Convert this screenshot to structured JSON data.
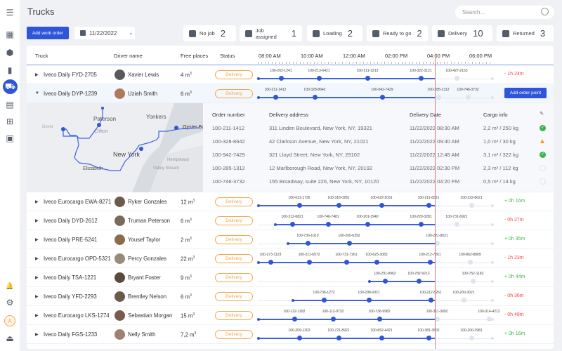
{
  "page": {
    "title": "Trucks"
  },
  "search": {
    "placeholder": "Search..."
  },
  "toolbar": {
    "add_label": "Add work order",
    "date": "11/22/2022"
  },
  "sidebar": {
    "items": [
      "menu",
      "grid",
      "box",
      "bag",
      "truck",
      "chart",
      "globe",
      "chat",
      "bell",
      "gear",
      "avatar",
      "logout"
    ],
    "avatar_letter": "A",
    "active": "truck"
  },
  "chips": [
    {
      "label": "No job",
      "count": "2"
    },
    {
      "label": "Job assigned",
      "count": "1"
    },
    {
      "label": "Loading",
      "count": "2"
    },
    {
      "label": "Ready to go",
      "count": "2"
    },
    {
      "label": "Delivery",
      "count": "10"
    },
    {
      "label": "Returned",
      "count": "3"
    }
  ],
  "table": {
    "headers": {
      "truck": "Truck",
      "driver": "Driver name",
      "free": "Free places",
      "status": "Status"
    },
    "time_ticks": [
      "08:00 AM",
      "10:00 AM",
      "12:00 AM",
      "02:00 PM",
      "04:00 PM",
      "06:00 PM"
    ],
    "current_time": "15:52",
    "rows": [
      {
        "truck": "Iveco Daily FYD-2705",
        "driver": "Xavier Lewis",
        "free": "4 m",
        "status": "Delivery",
        "delay": "- 1h 24m",
        "start": "07:28",
        "stops": [
          [
            "100-262-1241",
            "08:34"
          ],
          [
            "100-213-6421",
            "10:22"
          ],
          [
            "100-211-3213",
            "12:40"
          ],
          [
            "100-322-3121",
            "15:12"
          ],
          [
            "100-427-2153",
            "16:54"
          ]
        ]
      },
      {
        "truck": "Iveco Daily DYP-1239",
        "driver": "Uziah Smith",
        "free": "6 m",
        "status": "Delivery",
        "expanded": true,
        "action": "Add order point",
        "start": "07:28",
        "stops": [
          [
            "100-211-1412",
            "08:18"
          ],
          [
            "100-328-8642",
            "10:10"
          ],
          [
            "100-942-7429",
            "13:22"
          ],
          [
            "100-285-1312",
            "16:02"
          ],
          [
            "100-746-3732",
            "17:26"
          ]
        ]
      },
      {
        "truck": "Iveco Eurocargo EWA-8271",
        "driver": "Ryker Gonzales",
        "free": "12 m",
        "status": "Delivery",
        "delay": "+ 0h 16m",
        "start": "07:28",
        "stops": [
          [
            "100-621-1726",
            "09:26"
          ],
          [
            "100-318-0281",
            "11:18"
          ],
          [
            "100-622-2031",
            "13:20"
          ],
          [
            "100-211-8321",
            "15:34"
          ],
          [
            "100-222-8621",
            "17:36"
          ]
        ]
      },
      {
        "truck": "Iveco Daily DYD-2612",
        "driver": "Truman Peterson",
        "free": "6 m",
        "status": "Delivery",
        "delay": "- 0h 27m",
        "start": "08:16",
        "stops": [
          [
            "100-312-6821",
            "09:06"
          ],
          [
            "100-746-7481",
            "10:48"
          ],
          [
            "100-201-3940",
            "12:40"
          ],
          [
            "100-220-3281",
            "15:12"
          ],
          [
            "100-731-6921",
            "16:54"
          ]
        ]
      },
      {
        "truck": "Iveco Daily PRE-5241",
        "driver": "Yousef Taylor",
        "free": "2 m",
        "status": "Delivery",
        "delay": "+ 0h 35m",
        "start": "08:52",
        "stops": [
          [
            "100-736-1010",
            "09:50"
          ],
          [
            "100-200-6292",
            "11:48"
          ],
          [
            "100-221-8621",
            "15:58"
          ]
        ]
      },
      {
        "truck": "Iveco Eurocargo OPD-5321",
        "driver": "Percy Gonzales",
        "free": "22 m",
        "status": "Delivery",
        "delay": "- 1h 23m",
        "start": "07:28",
        "stops": [
          [
            "100-273-1123",
            "08:04"
          ],
          [
            "100-211-6972",
            "09:54"
          ],
          [
            "100-731-7261",
            "11:40"
          ],
          [
            "100-625-3083",
            "13:06"
          ],
          [
            "100-212-7261",
            "15:38"
          ],
          [
            "100-862-8809",
            "17:32"
          ]
        ]
      },
      {
        "truck": "Iveco Daily TSA-1221",
        "driver": "Bryant Foster",
        "free": "9 m",
        "status": "Delivery",
        "delay": "+ 0h 44m",
        "start": "12:44",
        "stops": [
          [
            "100-291-8962",
            "13:30"
          ],
          [
            "100-782-9213",
            "15:06"
          ],
          [
            "100-752-1182",
            "17:40"
          ]
        ]
      },
      {
        "truck": "Iveco Daily YFD-2293",
        "driver": "Brentley Nelson",
        "free": "6 m",
        "status": "Delivery",
        "delay": "- 0h 36m",
        "start": "09:06",
        "stops": [
          [
            "100-736-1272",
            "10:36"
          ],
          [
            "100-298-0921",
            "12:44"
          ],
          [
            "100-212-8261",
            "15:40"
          ],
          [
            "100-200-3021",
            "17:14"
          ]
        ]
      },
      {
        "truck": "Iveco Eurocargo LKS-1274",
        "driver": "Sebastian Morgan",
        "free": "15 m",
        "status": "Delivery",
        "delay": "- 0h 48m",
        "start": "07:28",
        "stops": [
          [
            "100-122-1182",
            "09:12"
          ],
          [
            "100-112-9732",
            "11:02"
          ],
          [
            "100-736-9982",
            "13:14"
          ],
          [
            "100-311-3092",
            "15:58"
          ],
          [
            "100-314-4212",
            "18:26"
          ]
        ]
      },
      {
        "truck": "Iveco Daily FGS-1233",
        "driver": "Nelly Smith",
        "free": "7,2 m",
        "status": "Delivery",
        "delay": "+ 0h 16m",
        "start": "07:28",
        "stops": [
          [
            "100-209-1202",
            "09:26"
          ],
          [
            "100-721-8921",
            "11:18"
          ],
          [
            "100-652-4421",
            "13:20"
          ],
          [
            "100-381-3802",
            "15:34"
          ],
          [
            "100-200-2981",
            "17:36"
          ]
        ]
      }
    ]
  },
  "detail": {
    "headers": {
      "order": "Order number",
      "address": "Delivery address",
      "date": "Delivery Date",
      "cargo": "Cargo info"
    },
    "map_labels": [
      "Paterson",
      "Yonkers",
      "Clifton",
      "Oyster Bay",
      "Dover",
      "New York",
      "Hempstead",
      "Elizabeth",
      "Valley Stream"
    ],
    "orders": [
      {
        "order": "100-211-1412",
        "address": "311 Linden Boulevard, New York, NY, 19321",
        "date": "11/22/2022 08:30 AM",
        "cargo": "2,2 m³ / 250 kg",
        "state": "done"
      },
      {
        "order": "100-328-8642",
        "address": "42 Clarkson Avenue, New York, NY, 21021",
        "date": "11/22/2022 09:40 AM",
        "cargo": "1,0 m³ / 30 kg",
        "state": "warning"
      },
      {
        "order": "100-942-7429",
        "address": "321 Lloyd Street, New York, NY, 29102",
        "date": "11/22/2022 12:45 AM",
        "cargo": "3,1 m³ / 322 kg",
        "state": "done"
      },
      {
        "order": "100-285-1312",
        "address": "12 Marlborough Road, New York, NY, 20192",
        "date": "11/22/2022 02:30 PM",
        "cargo": "2,3 m³ / 112 kg",
        "state": "pending"
      },
      {
        "order": "100-746-3732",
        "address": "155 Broadway, suite 226, New York, NY, 10120",
        "date": "11/22/2022 04:20 PM",
        "cargo": "0,5 m³ / 14 kg",
        "state": "pending"
      }
    ]
  },
  "colors": {
    "accent": "#2f56d9",
    "delivery": "#f5a64a",
    "positive": "#3cb54a",
    "negative": "#f0484a",
    "now_line": "#f07070"
  }
}
